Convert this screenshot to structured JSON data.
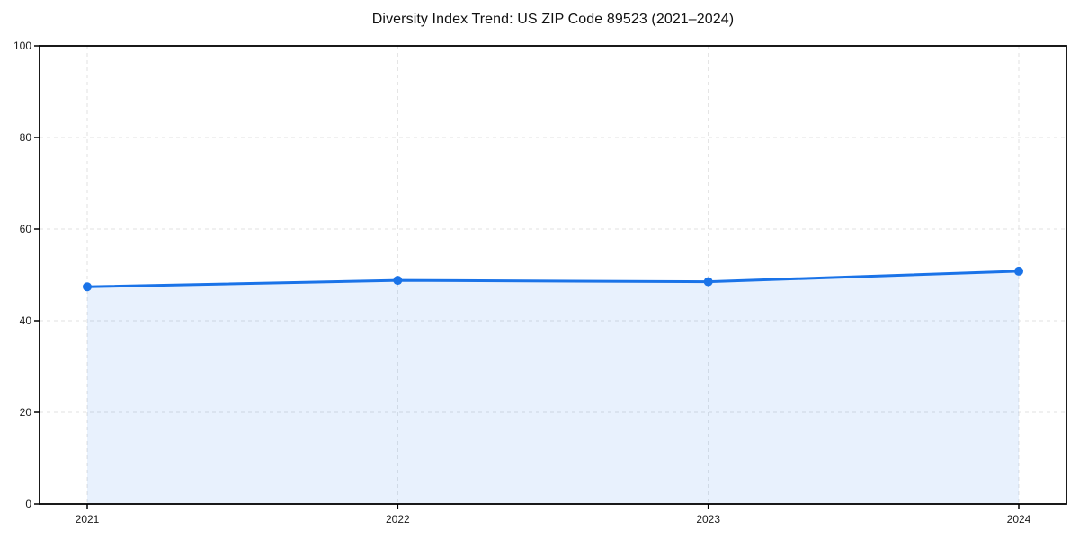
{
  "title": "Diversity Index Trend: US ZIP Code 89523 (2021–2024)",
  "chart_data": {
    "type": "line",
    "title": "Diversity Index Trend: US ZIP Code 89523 (2021–2024)",
    "categories": [
      "2021",
      "2022",
      "2023",
      "2024"
    ],
    "series": [
      {
        "name": "Diversity Index",
        "values": [
          47.4,
          48.8,
          48.5,
          50.8
        ]
      }
    ],
    "xlabel": "",
    "ylabel": "",
    "ylim": [
      0,
      100
    ],
    "yticks": [
      0,
      20,
      40,
      60,
      80,
      100
    ],
    "grid": true,
    "grid_style": "dashed",
    "legend": false,
    "area_fill": true,
    "colors": {
      "line": "#1a73e8",
      "marker": "#1a73e8",
      "fill": "rgba(26,115,232,0.1)",
      "grid": "#e0e0e0",
      "spine": "#000000",
      "tick_text": "#1a1a1a",
      "background": "#ffffff"
    }
  }
}
